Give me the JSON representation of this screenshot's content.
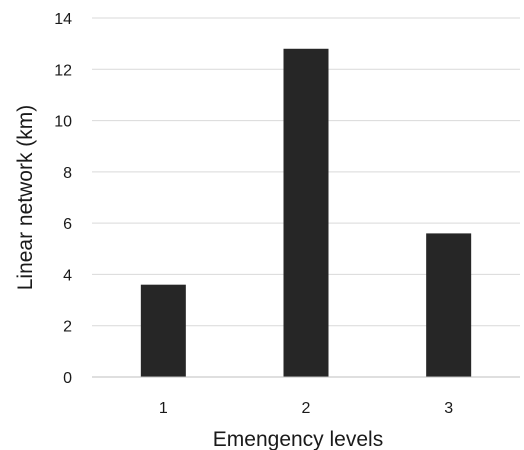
{
  "chart_data": {
    "type": "bar",
    "categories": [
      "1",
      "2",
      "3"
    ],
    "values": [
      3.6,
      12.8,
      5.6
    ],
    "title": "",
    "xlabel": "Emengency levels",
    "ylabel": "Linear network (km)",
    "ylim": [
      0,
      14
    ],
    "yticks": [
      "0",
      "2",
      "4",
      "6",
      "8",
      "10",
      "12",
      "14"
    ],
    "grid": true,
    "legend": "none",
    "bar_color": "#262626"
  }
}
